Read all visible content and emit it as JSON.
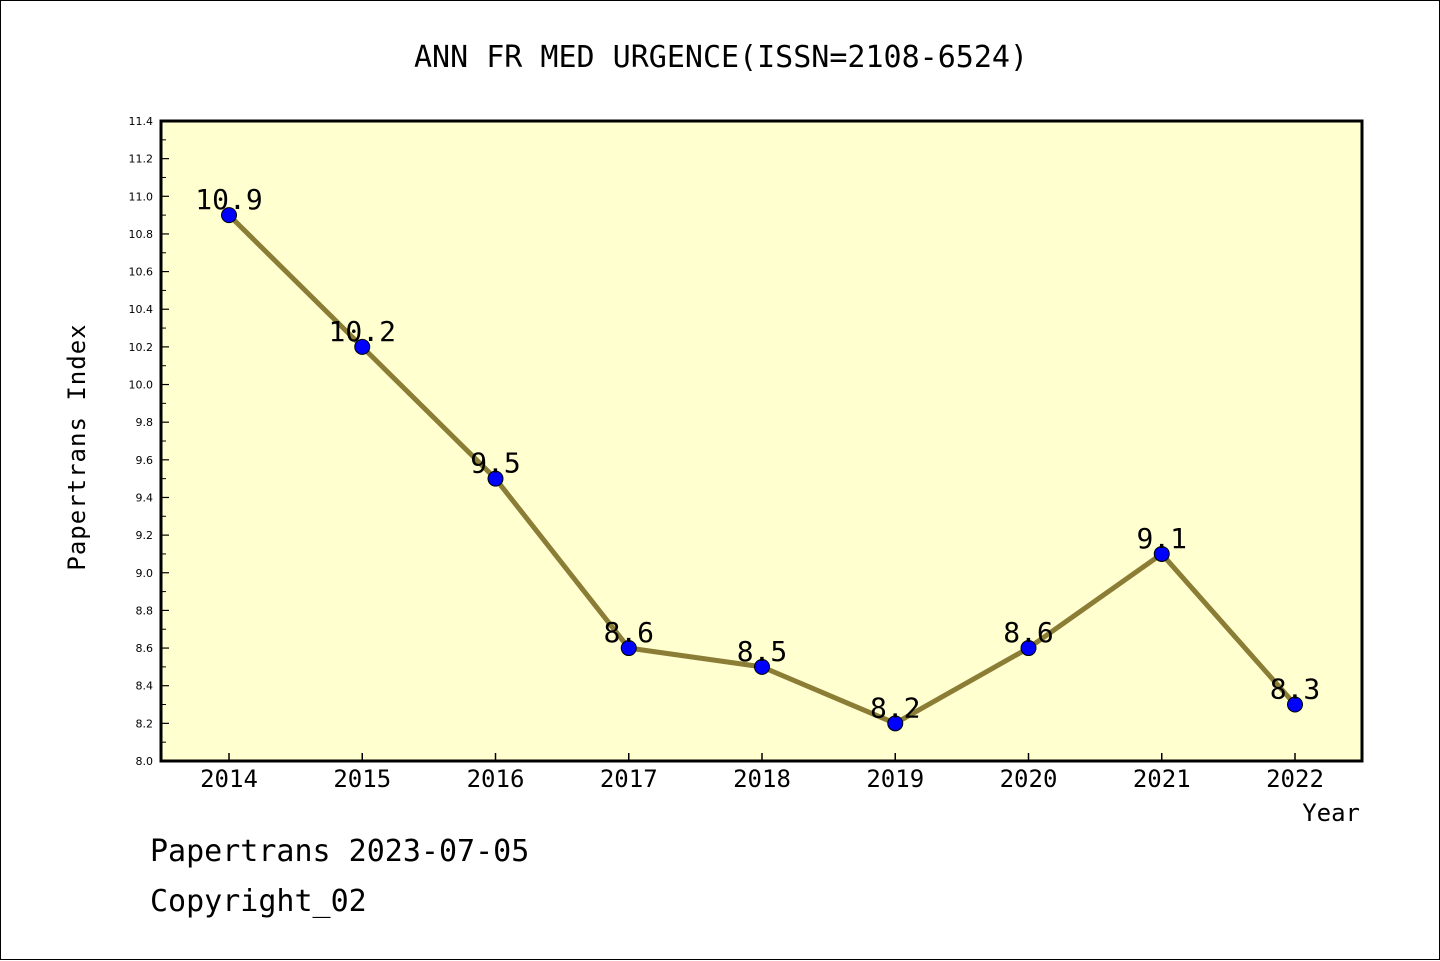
{
  "chart_data": {
    "type": "line",
    "title": "ANN FR MED URGENCE(ISSN=2108-6524)",
    "xlabel": "Year",
    "ylabel": "Papertrans Index",
    "x": [
      "2014",
      "2015",
      "2016",
      "2017",
      "2018",
      "2019",
      "2020",
      "2021",
      "2022"
    ],
    "y": [
      10.9,
      10.2,
      9.5,
      8.6,
      8.5,
      8.2,
      8.6,
      9.1,
      8.3
    ],
    "data_labels": [
      "10.9",
      "10.2",
      "9.5",
      "8.6",
      "8.5",
      "8.2",
      "8.6",
      "9.1",
      "8.3"
    ],
    "ylim": [
      8.0,
      11.4
    ],
    "yticks": [
      "8.0",
      "8.2",
      "8.4",
      "8.6",
      "8.8",
      "9.0",
      "9.2",
      "9.4",
      "9.6",
      "9.8",
      "10.0",
      "10.2",
      "10.4",
      "10.6",
      "10.8",
      "11.0",
      "11.2",
      "11.4"
    ],
    "grid": false,
    "colors": {
      "plot_background": "#ffffd0",
      "line": "#8b7d35",
      "marker": "#0000ff"
    }
  },
  "footer": {
    "line1": "Papertrans 2023-07-05",
    "line2": "Copyright_02"
  }
}
